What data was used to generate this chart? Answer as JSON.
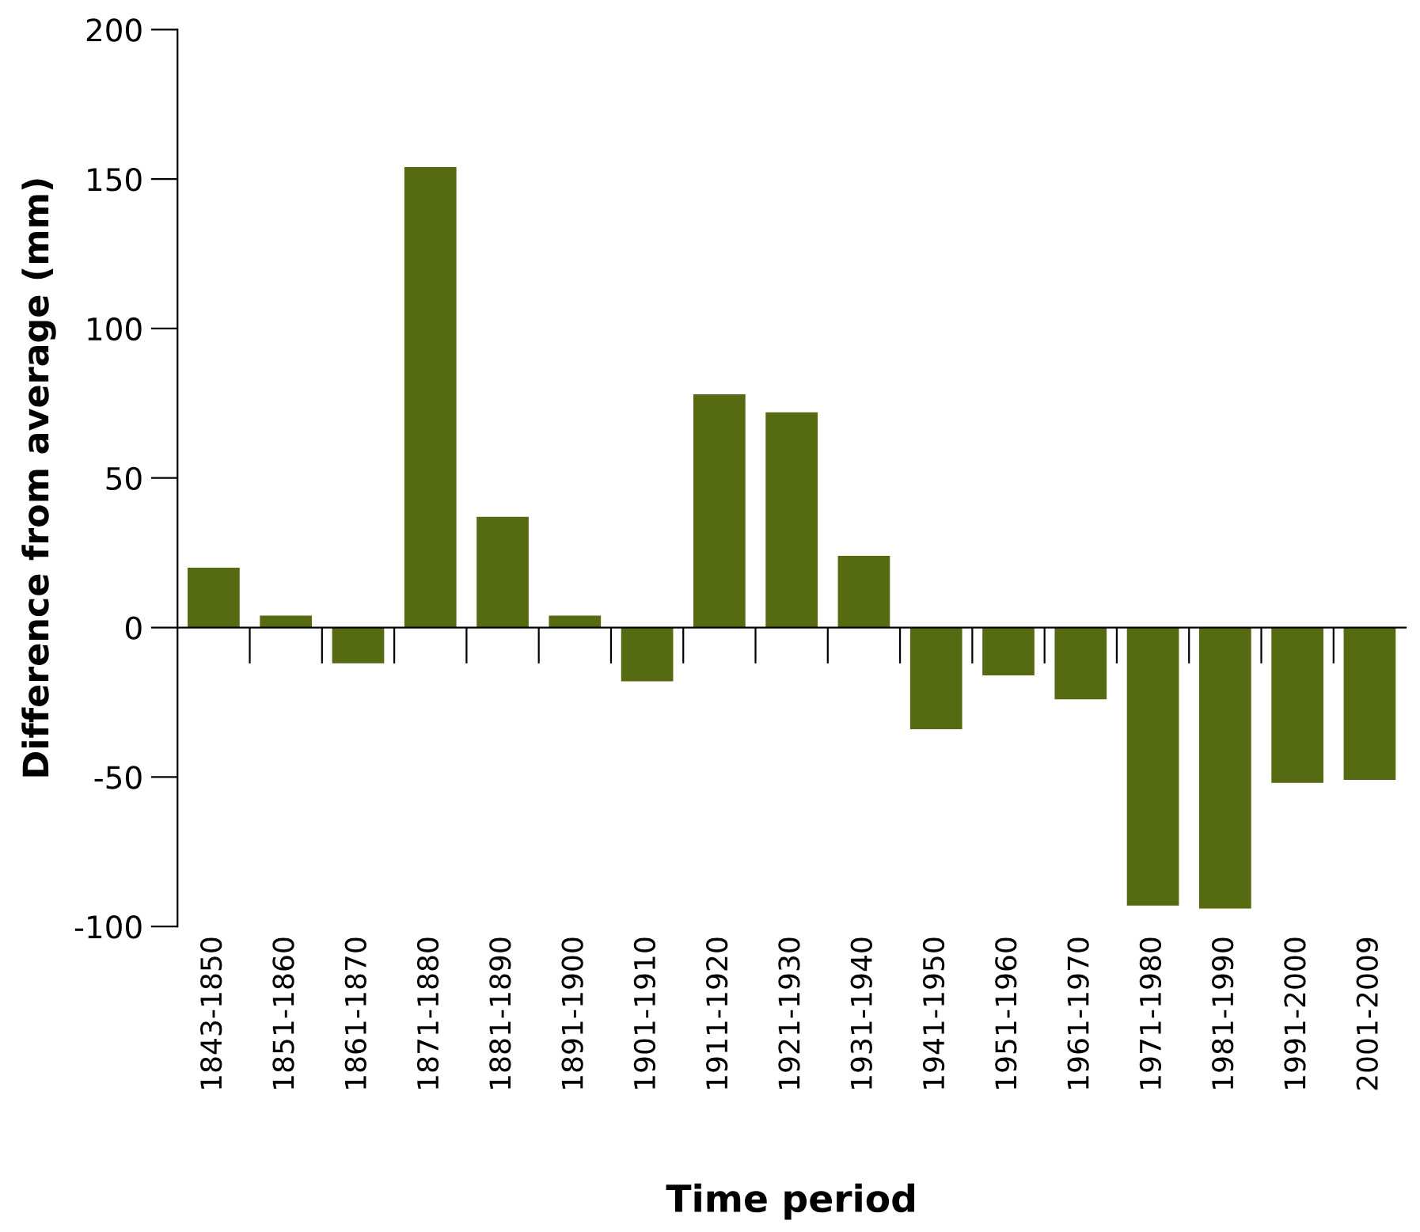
{
  "chart_data": {
    "type": "bar",
    "xlabel": "Time period",
    "ylabel": "Difference from average (mm)",
    "categories": [
      "1843-1850",
      "1851-1860",
      "1861-1870",
      "1871-1880",
      "1881-1890",
      "1891-1900",
      "1901-1910",
      "1911-1920",
      "1921-1930",
      "1931-1940",
      "1941-1950",
      "1951-1960",
      "1961-1970",
      "1971-1980",
      "1981-1990",
      "1991-2000",
      "2001-2009"
    ],
    "values": [
      20,
      4,
      -12,
      154,
      37,
      4,
      -18,
      78,
      72,
      24,
      -34,
      -16,
      -24,
      -93,
      -94,
      -52,
      -51
    ],
    "color": "#566a12",
    "ylim": [
      -100,
      200
    ],
    "yticks": [
      -100,
      -50,
      0,
      50,
      100,
      150,
      200
    ]
  }
}
